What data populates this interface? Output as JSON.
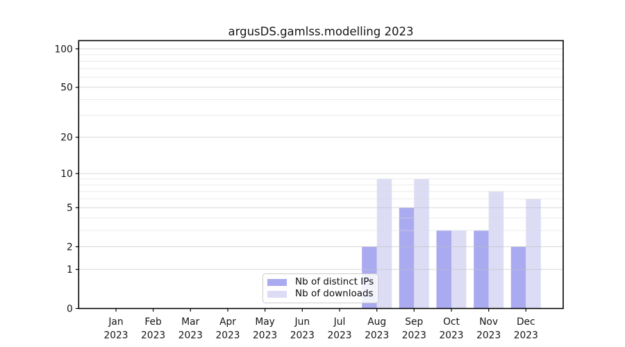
{
  "title": "argusDS.gamlss.modelling 2023",
  "chart_data": {
    "type": "bar",
    "title": "argusDS.gamlss.modelling 2023",
    "y_scale": "log1p",
    "categories": [
      "Jan",
      "Feb",
      "Mar",
      "Apr",
      "May",
      "Jun",
      "Jul",
      "Aug",
      "Sep",
      "Oct",
      "Nov",
      "Dec"
    ],
    "year_label": "2023",
    "series": [
      {
        "name": "Nb of distinct IPs",
        "color": "#aaaaf0",
        "values": [
          0,
          0,
          0,
          0,
          0,
          0,
          0,
          2,
          5,
          3,
          3,
          2
        ]
      },
      {
        "name": "Nb of downloads",
        "color": "#dcdcf5",
        "values": [
          0,
          0,
          0,
          0,
          0,
          0,
          0,
          9,
          9,
          3,
          7,
          6
        ]
      }
    ],
    "y_major_ticks": [
      0,
      1,
      2,
      5,
      10,
      20,
      50,
      100
    ],
    "y_minor_ticks": [
      3,
      4,
      6,
      7,
      8,
      9,
      30,
      40,
      60,
      70,
      80,
      90
    ],
    "ylim": [
      0,
      116
    ],
    "xlabel": "",
    "ylabel": "",
    "grid": true,
    "legend_position": "lower center"
  },
  "colors": {
    "background": "#ffffff",
    "spine": "#000000",
    "major_grid": "#bfbfbf",
    "minor_grid": "#dcdcdc",
    "text": "#141414"
  }
}
